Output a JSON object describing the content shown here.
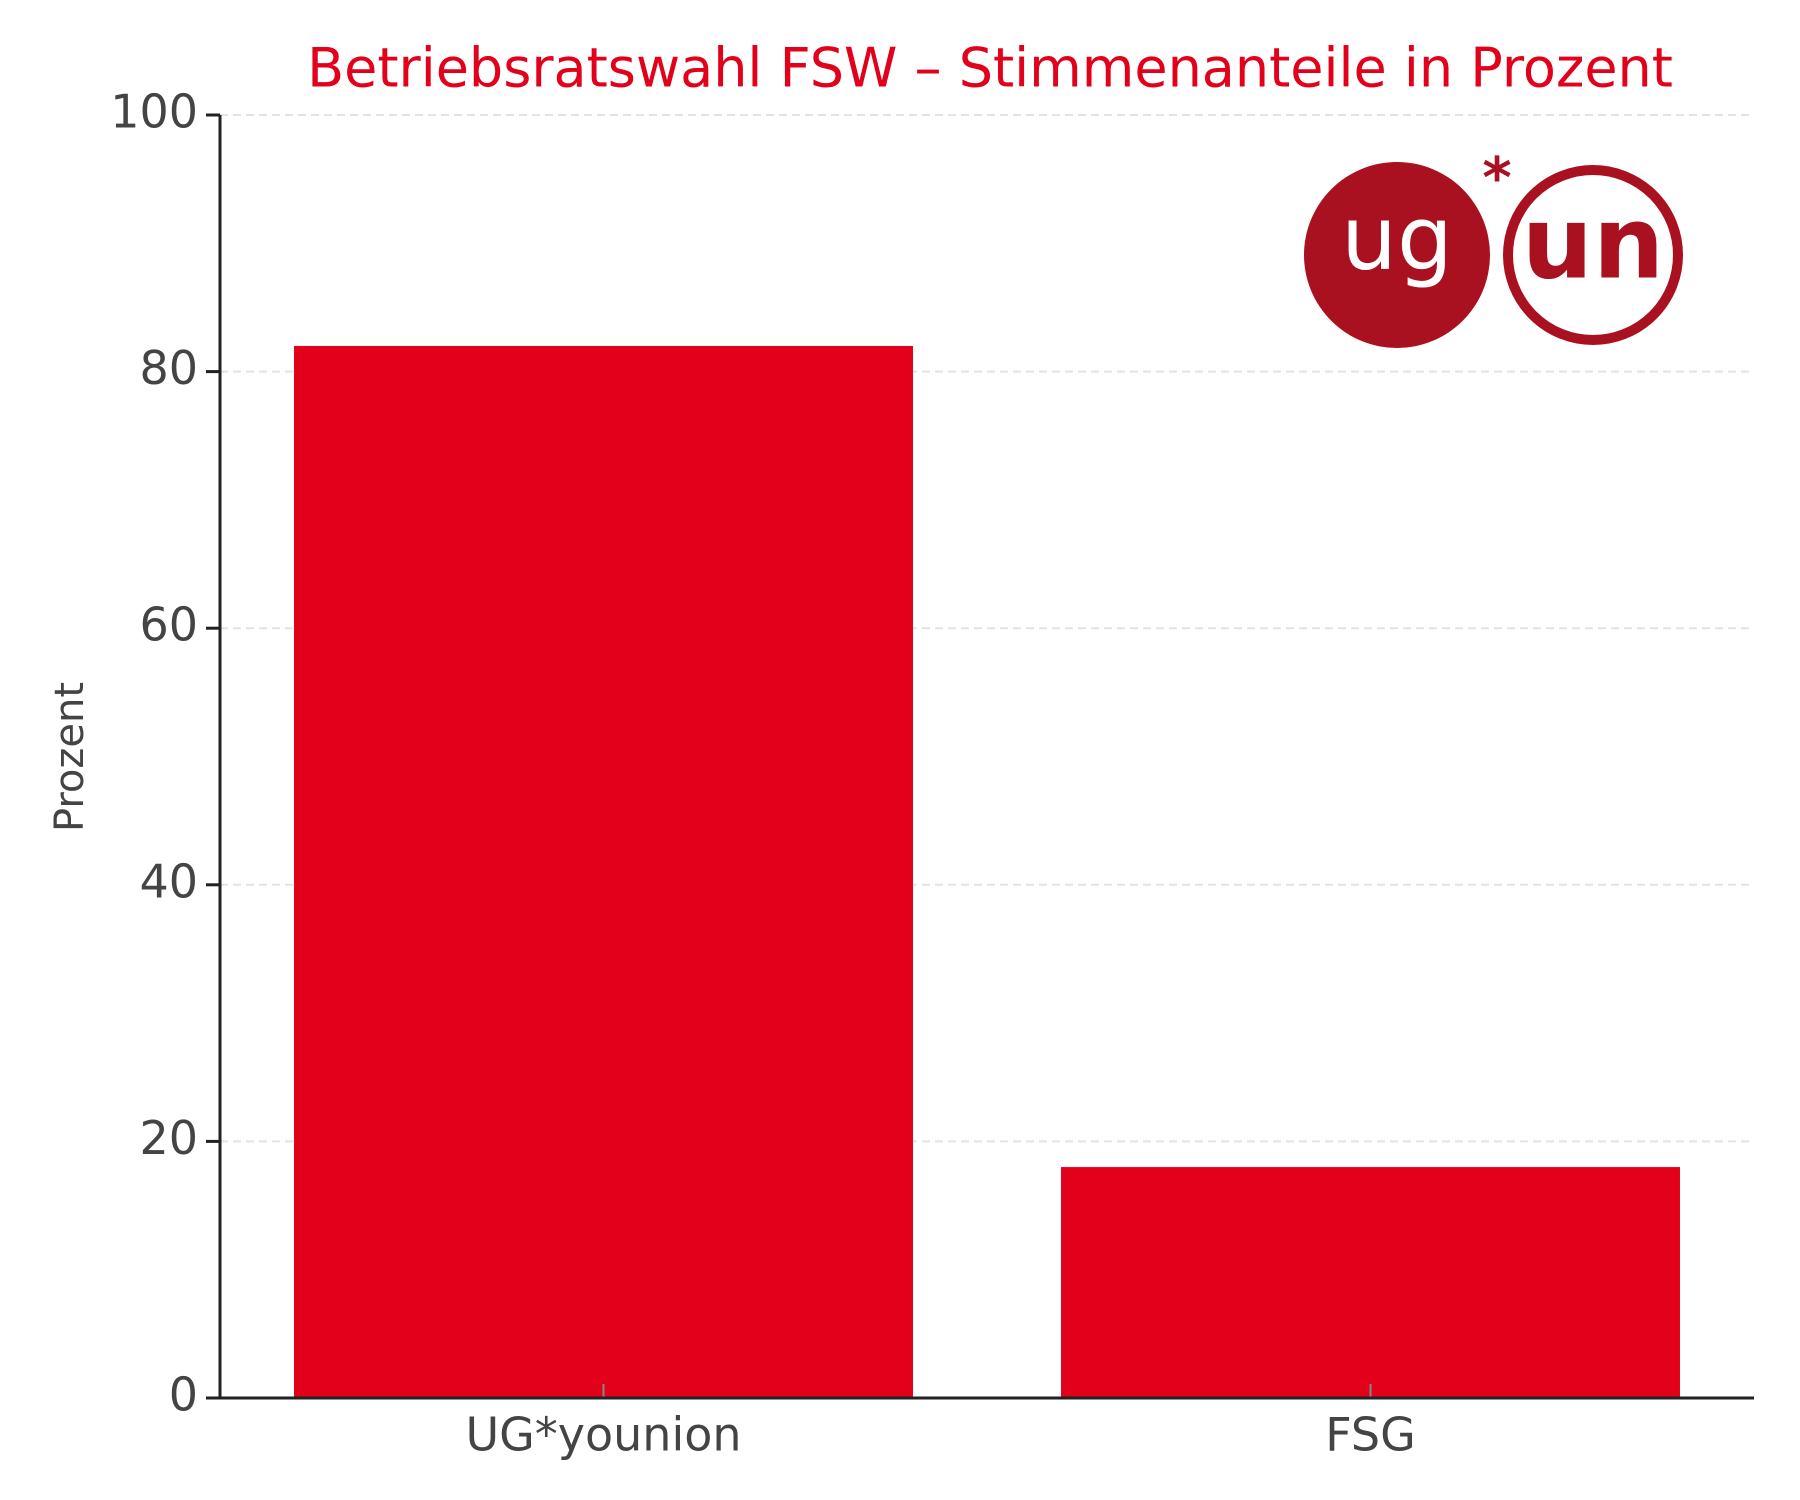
{
  "chart_data": {
    "type": "bar",
    "title": "Betriebsratswahl FSW – Stimmenanteile in Prozent",
    "y_label": "Prozent",
    "categories": [
      "UG*younion",
      "FSG"
    ],
    "values": [
      82,
      18
    ],
    "color": "#e2001a",
    "ylim": [
      0,
      100
    ],
    "yticks": [
      0,
      20,
      40,
      60,
      80,
      100
    ],
    "grid": true
  },
  "logo": {
    "left": "ug",
    "star": "*",
    "right": "un"
  }
}
